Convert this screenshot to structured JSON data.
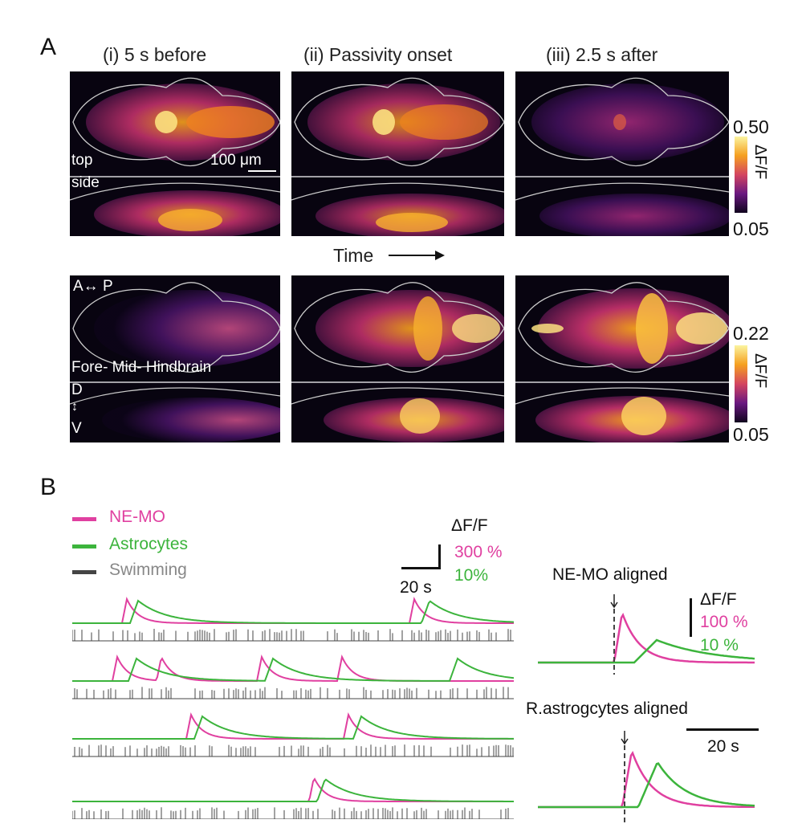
{
  "panels": {
    "a": "A",
    "b": "B"
  },
  "columns": [
    "(i) 5 s before",
    "(ii) Passivity onset",
    "(iii) 2.5 s after"
  ],
  "image_labels": {
    "top": "top",
    "side": "side",
    "scale": "100 μm",
    "ap": "A↔ P",
    "regions": "Fore- Mid- Hindbrain",
    "d": "D",
    "dv_arrow": "↕",
    "v": "V"
  },
  "time_arrow": "Time",
  "colorbars": [
    {
      "max": "0.50",
      "min": "0.05",
      "unit": "ΔF/F"
    },
    {
      "max": "0.22",
      "min": "0.05",
      "unit": "ΔF/F"
    }
  ],
  "colors": {
    "ne_mo": "#e040a0",
    "astro": "#3cb43c",
    "swim": "#444444",
    "swim_text": "#888888"
  },
  "legend": [
    {
      "label": "NE-MO",
      "color": "#e040a0"
    },
    {
      "label": "Astrocytes",
      "color": "#3cb43c"
    },
    {
      "label": "Swimming",
      "color": "#444444"
    }
  ],
  "scalebar_left": {
    "unit": "ΔF/F",
    "ne": "300 %",
    "astro": "10%",
    "time": "20 s"
  },
  "aligned": {
    "title1": "NE-MO aligned",
    "title2": "R.astrogcytes aligned",
    "unit": "ΔF/F",
    "ne": "100 %",
    "astro": "10 %",
    "time": "20 s"
  },
  "chart_data": {
    "type": "line",
    "title": "",
    "series": [
      {
        "name": "NE-MO",
        "color": "#e040a0"
      },
      {
        "name": "Astrocytes",
        "color": "#3cb43c"
      },
      {
        "name": "Swimming",
        "color": "#444444"
      }
    ]
  }
}
